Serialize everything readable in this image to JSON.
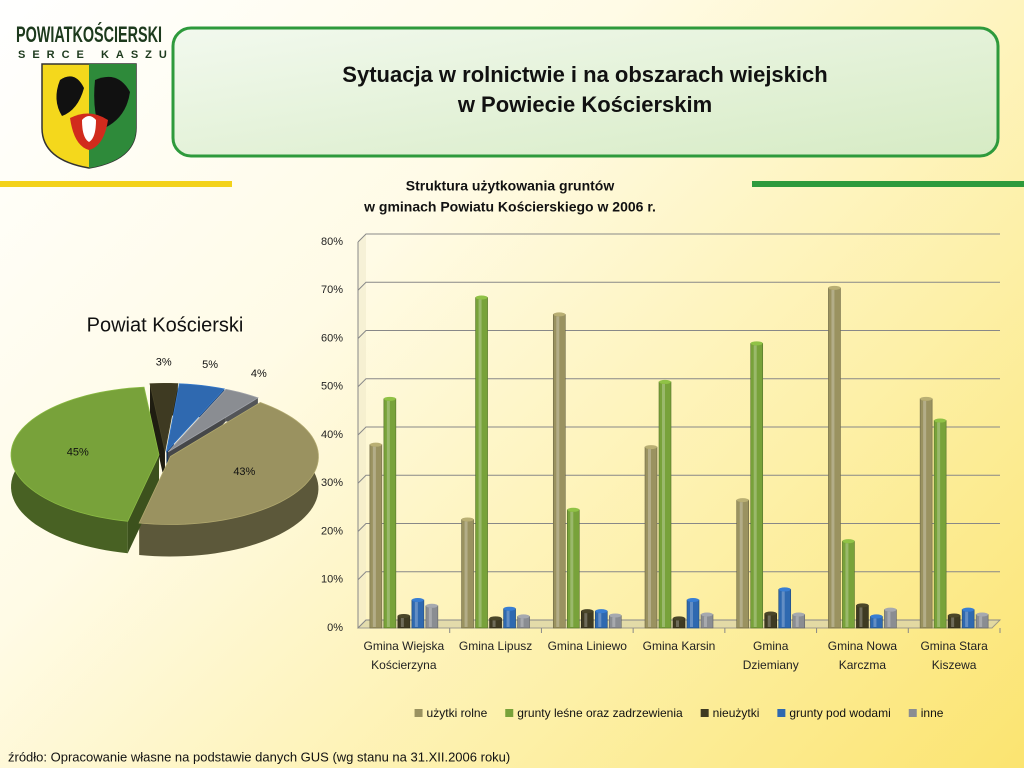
{
  "logo": {
    "name": "POWIATKOŚCIERSKI",
    "tagline": "SERCE KASZUB"
  },
  "header": {
    "title": [
      "Sytuacja w rolnictwie i na obszarach wiejskich",
      "w Powiecie Kościerskim"
    ]
  },
  "source": "źródło: Opracowanie własne na podstawie danych GUS (wg stanu na 31.XII.2006 roku)",
  "chart_data": [
    {
      "type": "pie",
      "title": "Powiat Kościerski",
      "values": [
        43,
        45,
        3,
        5,
        4
      ],
      "value_labels": [
        "43%",
        "45%",
        "3%",
        "5%",
        "4%"
      ],
      "colors": [
        "#9a9260",
        "#78a23a",
        "#3e3a22",
        "#2f69b0",
        "#8a8d92"
      ]
    },
    {
      "type": "bar",
      "title": [
        "Struktura użytkowania gruntów",
        "w gminach Powiatu Kościerskiego w 2006 r."
      ],
      "categories": [
        "Gmina Wiejska Kościerzyna",
        "Gmina Lipusz",
        "Gmina Liniewo",
        "Gmina Karsin",
        "Gmina Dziemiany",
        "Gmina Nowa Karczma",
        "Gmina Stara Kiszewa"
      ],
      "series": [
        {
          "name": "użytki rolne",
          "color": "#9a9260",
          "values": [
            38,
            22.5,
            65,
            37.5,
            26.5,
            70.5,
            47.5
          ]
        },
        {
          "name": "grunty leśne oraz zadrzewienia",
          "color": "#78a23a",
          "values": [
            47.5,
            68.5,
            24.5,
            51,
            59,
            18,
            43
          ]
        },
        {
          "name": "nieużytki",
          "color": "#3e3a22",
          "values": [
            2.5,
            2,
            3.5,
            2,
            3,
            4.7,
            2.6
          ]
        },
        {
          "name": "grunty pod wodami",
          "color": "#2f69b0",
          "values": [
            5.8,
            4,
            3.5,
            5.8,
            8,
            2.4,
            3.8
          ]
        },
        {
          "name": "inne",
          "color": "#8a8d92",
          "values": [
            4.6,
            2.4,
            2.6,
            2.8,
            2.8,
            3.8,
            2.8
          ]
        }
      ],
      "ylim": [
        0,
        80
      ],
      "yticks": [
        {
          "value": 0,
          "label": "0%"
        },
        {
          "value": 10,
          "label": "10%"
        },
        {
          "value": 20,
          "label": "20%"
        },
        {
          "value": 30,
          "label": "30%"
        },
        {
          "value": 40,
          "label": "40%"
        },
        {
          "value": 50,
          "label": "50%"
        },
        {
          "value": 60,
          "label": "60%"
        },
        {
          "value": 70,
          "label": "70%"
        },
        {
          "value": 80,
          "label": "80%"
        }
      ],
      "grid": true,
      "legend": "bottom"
    }
  ]
}
